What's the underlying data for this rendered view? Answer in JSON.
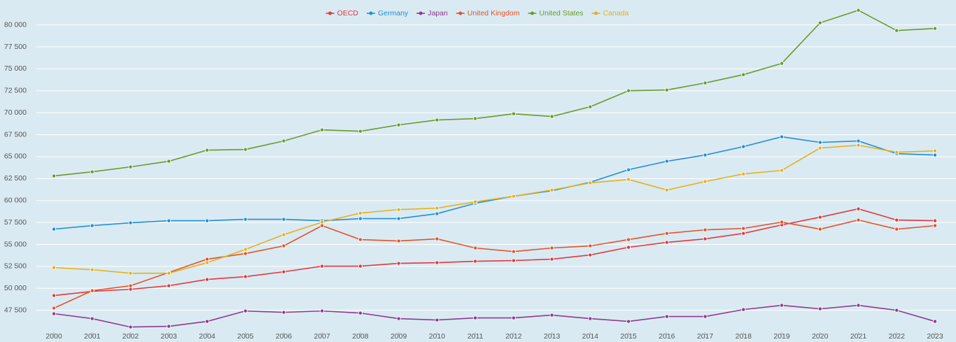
{
  "chart_data": {
    "type": "line",
    "categories": [
      "2000",
      "2001",
      "2002",
      "2003",
      "2004",
      "2005",
      "2006",
      "2007",
      "2008",
      "2009",
      "2010",
      "2011",
      "2012",
      "2013",
      "2014",
      "2015",
      "2016",
      "2017",
      "2018",
      "2019",
      "2020",
      "2021",
      "2022",
      "2023"
    ],
    "series": [
      {
        "name": "OECD",
        "color": "#e0393f",
        "values": [
          49180,
          49650,
          49890,
          50290,
          51010,
          51330,
          51880,
          52520,
          52520,
          52840,
          52920,
          53080,
          53160,
          53320,
          53800,
          54670,
          55230,
          55630,
          56260,
          57220,
          58100,
          59050,
          57780,
          57700
        ]
      },
      {
        "name": "Germany",
        "color": "#1f8fd6",
        "values": [
          56740,
          57140,
          57460,
          57700,
          57700,
          57860,
          57860,
          57700,
          57940,
          57940,
          58500,
          59690,
          60490,
          61120,
          62080,
          63510,
          64470,
          65180,
          66140,
          67260,
          66620,
          66780,
          65340,
          65180
        ]
      },
      {
        "name": "Japan",
        "color": "#8e3a8e",
        "values": [
          47110,
          46550,
          45590,
          45670,
          46230,
          47420,
          47260,
          47420,
          47180,
          46550,
          46390,
          46630,
          46630,
          46950,
          46550,
          46230,
          46790,
          46790,
          47580,
          48060,
          47660,
          48060,
          47500,
          46230
        ]
      },
      {
        "name": "United Kingdom",
        "color": "#e0542a",
        "values": [
          47740,
          49730,
          50290,
          51800,
          53320,
          53960,
          54830,
          57140,
          55550,
          55390,
          55630,
          54590,
          54190,
          54590,
          54830,
          55550,
          56260,
          56660,
          56820,
          57540,
          56740,
          57780,
          56740,
          57140
        ]
      },
      {
        "name": "United States",
        "color": "#6a9a2b",
        "values": [
          62800,
          63270,
          63830,
          64470,
          65740,
          65820,
          66780,
          68050,
          67890,
          68610,
          69170,
          69330,
          69880,
          69570,
          70680,
          72510,
          72590,
          73390,
          74340,
          75620,
          80240,
          81670,
          79360,
          79600
        ]
      },
      {
        "name": "Canada",
        "color": "#e2b21c",
        "values": [
          52360,
          52120,
          51720,
          51720,
          52920,
          54430,
          56110,
          57540,
          58570,
          58970,
          59130,
          59850,
          60490,
          61200,
          62000,
          62400,
          61200,
          62160,
          63030,
          63430,
          65980,
          66300,
          65500,
          65660
        ]
      }
    ],
    "ylim": [
      45000,
      83000
    ],
    "yticks": [
      {
        "value": 47500,
        "label": "47 500"
      },
      {
        "value": 50000,
        "label": "50 000"
      },
      {
        "value": 52500,
        "label": "52 500"
      },
      {
        "value": 55000,
        "label": "55 000"
      },
      {
        "value": 57500,
        "label": "57 500"
      },
      {
        "value": 60000,
        "label": "60 000"
      },
      {
        "value": 62500,
        "label": "62 500"
      },
      {
        "value": 65000,
        "label": "65 000"
      },
      {
        "value": 67500,
        "label": "67 500"
      },
      {
        "value": 70000,
        "label": "70 000"
      },
      {
        "value": 72500,
        "label": "72 500"
      },
      {
        "value": 75000,
        "label": "75 000"
      },
      {
        "value": 77500,
        "label": "77 500"
      },
      {
        "value": 80000,
        "label": "80 000"
      }
    ],
    "grid": true
  }
}
